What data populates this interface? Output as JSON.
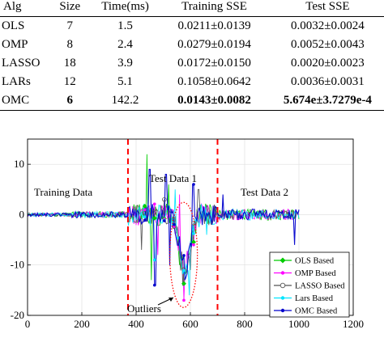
{
  "table": {
    "headers": [
      "Alg",
      "Size",
      "Time(ms)",
      "Training SSE",
      "Test SSE"
    ],
    "rows": [
      {
        "alg": "OLS",
        "size": "7",
        "time": "1.5",
        "train": "0.0211±0.0139",
        "test": "0.0032±0.0024",
        "bold": [
          "time"
        ]
      },
      {
        "alg": "OMP",
        "size": "8",
        "time": "2.4",
        "train": "0.0279±0.0194",
        "test": "0.0052±0.0043",
        "bold": []
      },
      {
        "alg": "LASSO",
        "size": "18",
        "time": "3.9",
        "train": "0.0172±0.0150",
        "test": "0.0020±0.0023",
        "bold": []
      },
      {
        "alg": "LARs",
        "size": "12",
        "time": "5.1",
        "train": "0.1058±0.0642",
        "test": "0.0036±0.0031",
        "bold": []
      },
      {
        "alg": "OMC",
        "size": "6",
        "time": "142.2",
        "train": "0.0143±0.0082",
        "test": "5.674e±3.7279e-4",
        "bold": [
          "size",
          "train",
          "test"
        ]
      }
    ]
  },
  "chart_data": {
    "type": "line",
    "xlim": [
      0,
      1200
    ],
    "ylim": [
      -20,
      15
    ],
    "xticks": [
      0,
      200,
      400,
      600,
      800,
      1000,
      1200
    ],
    "yticks": [
      -20,
      -10,
      0,
      10
    ],
    "grid": true,
    "legend_position": "bottom-right",
    "annotations": {
      "training": "Training Data",
      "test1": "Test Data 1",
      "test2": "Test Data 2",
      "outliers": "Outliers"
    },
    "dividers_x": [
      370,
      700
    ],
    "outlier_region": {
      "x_center": 575,
      "y_center": -8
    },
    "series": [
      {
        "name": "OLS Based",
        "color": "#00cc00",
        "marker": "diamond",
        "spikes": [
          [
            440,
            12
          ],
          [
            520,
            6
          ],
          [
            560,
            -10
          ],
          [
            455,
            -13
          ],
          [
            580,
            -12
          ]
        ]
      },
      {
        "name": "OMP Based",
        "color": "#ff00ff",
        "marker": "dot",
        "spikes": [
          [
            575,
            -17
          ],
          [
            480,
            -8
          ],
          [
            560,
            4
          ],
          [
            610,
            -6
          ]
        ]
      },
      {
        "name": "LASSO Based",
        "color": "#555555",
        "marker": "circle",
        "spikes": [
          [
            420,
            -7
          ],
          [
            600,
            -11
          ],
          [
            630,
            5
          ],
          [
            505,
            3
          ]
        ]
      },
      {
        "name": "Lars Based",
        "color": "#00e5ff",
        "marker": "star",
        "spikes": [
          [
            595,
            -16
          ],
          [
            470,
            -9
          ],
          [
            545,
            5
          ],
          [
            660,
            -4
          ]
        ]
      },
      {
        "name": "OMC Based",
        "color": "#0000cc",
        "marker": "star",
        "spikes": [
          [
            450,
            9
          ],
          [
            470,
            -14
          ],
          [
            510,
            8
          ],
          [
            525,
            -10
          ],
          [
            570,
            -9
          ],
          [
            610,
            6
          ],
          [
            720,
            4
          ],
          [
            985,
            -6
          ],
          [
            1000,
            1
          ]
        ]
      }
    ]
  }
}
